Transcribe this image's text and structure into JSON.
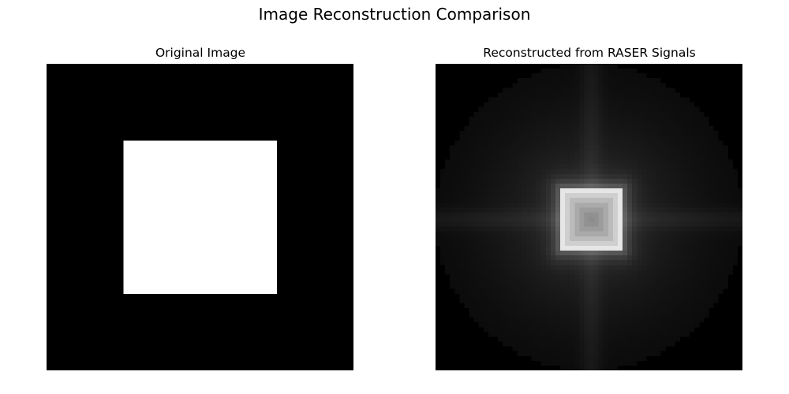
{
  "figure": {
    "title": "Image Reconstruction Comparison"
  },
  "chart_data": [
    {
      "type": "heatmap",
      "title": "Original Image",
      "grid_size": 64,
      "colormap": "gray",
      "background_value": 0,
      "square": {
        "row_start": 16,
        "row_end": 48,
        "col_start": 16,
        "col_end": 48,
        "value": 1
      },
      "axes": "off"
    },
    {
      "type": "heatmap",
      "title": "Reconstructed from RASER Signals",
      "grid_size": 64,
      "colormap": "gray",
      "disk_radius_cells": 32,
      "bright_square": {
        "row_start": 26,
        "row_end": 39,
        "col_start": 26,
        "col_end": 39,
        "edge_value": 0.95,
        "center_value": 0.55
      },
      "background_glow_value": 0.12,
      "axes": "off"
    }
  ]
}
